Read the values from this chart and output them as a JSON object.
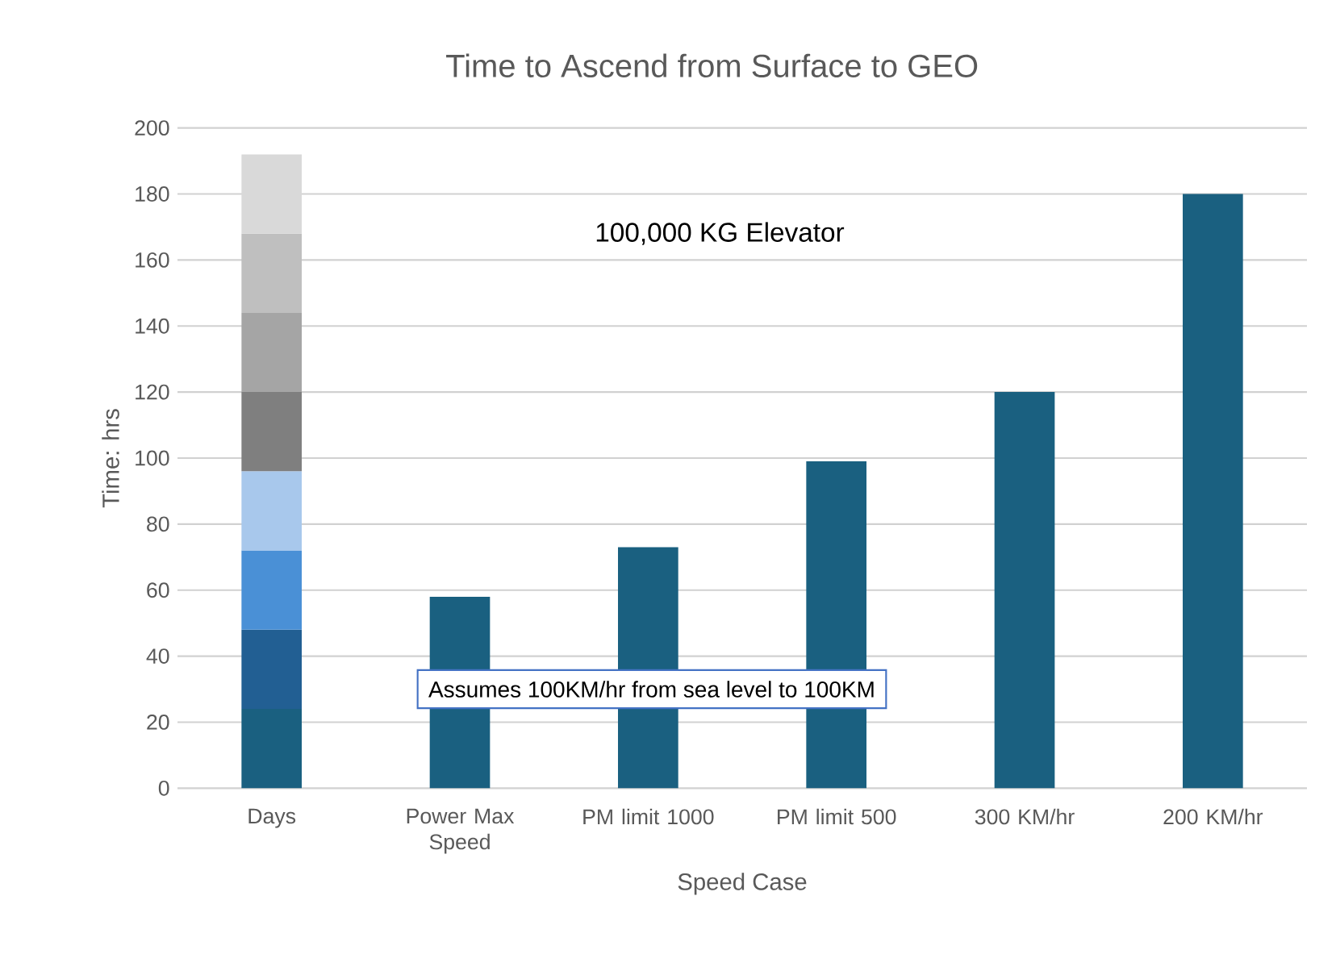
{
  "chart_data": {
    "type": "bar",
    "title": "Time to Ascend from Surface to GEO",
    "xlabel": "Speed Case",
    "ylabel": "Time: hrs",
    "categories": [
      "Days",
      "Power Max Speed",
      "PM limit 1000",
      "PM limit 500",
      "300 KM/hr",
      "200 KM/hr"
    ],
    "stacked": true,
    "series": [
      {
        "color": "#1a6080",
        "values": [
          24,
          58,
          73,
          99,
          120,
          180
        ]
      },
      {
        "color": "#225f93",
        "values": [
          24,
          null,
          null,
          null,
          null,
          null
        ]
      },
      {
        "color": "#4a90d6",
        "values": [
          24,
          null,
          null,
          null,
          null,
          null
        ]
      },
      {
        "color": "#a8c8ec",
        "values": [
          24,
          null,
          null,
          null,
          null,
          null
        ]
      },
      {
        "color": "#7f7f7f",
        "values": [
          24,
          null,
          null,
          null,
          null,
          null
        ]
      },
      {
        "color": "#a5a5a5",
        "values": [
          24,
          null,
          null,
          null,
          null,
          null
        ]
      },
      {
        "color": "#bfbfbf",
        "values": [
          24,
          null,
          null,
          null,
          null,
          null
        ]
      },
      {
        "color": "#d9d9d9",
        "values": [
          24,
          null,
          null,
          null,
          null,
          null
        ]
      }
    ],
    "ylim": [
      0,
      200
    ],
    "yticks": [
      0,
      20,
      40,
      60,
      80,
      100,
      120,
      140,
      160,
      180,
      200
    ],
    "grid": "y",
    "annotations": [
      "100,000 KG Elevator",
      "Assumes 100KM/hr from sea level to 100KM"
    ]
  }
}
